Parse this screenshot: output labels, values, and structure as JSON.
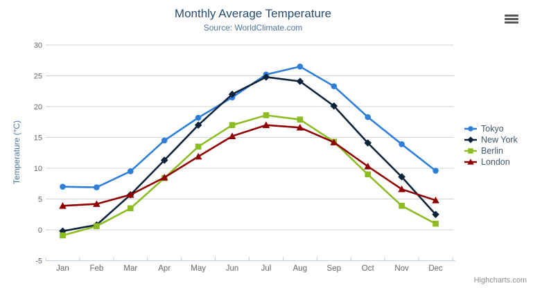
{
  "chart_data": {
    "type": "line",
    "title": "Monthly Average Temperature",
    "subtitle": "Source: WorldClimate.com",
    "categories": [
      "Jan",
      "Feb",
      "Mar",
      "Apr",
      "May",
      "Jun",
      "Jul",
      "Aug",
      "Sep",
      "Oct",
      "Nov",
      "Dec"
    ],
    "series": [
      {
        "name": "Tokyo",
        "color": "#2f7ed8",
        "marker": "circle",
        "values": [
          7.0,
          6.9,
          9.5,
          14.5,
          18.2,
          21.5,
          25.2,
          26.5,
          23.3,
          18.3,
          13.9,
          9.6
        ]
      },
      {
        "name": "New York",
        "color": "#0d233a",
        "marker": "diamond",
        "values": [
          -0.2,
          0.8,
          5.7,
          11.3,
          17.0,
          22.0,
          24.8,
          24.1,
          20.1,
          14.1,
          8.6,
          2.5
        ]
      },
      {
        "name": "Berlin",
        "color": "#8bbc21",
        "marker": "square",
        "values": [
          -0.9,
          0.6,
          3.5,
          8.4,
          13.5,
          17.0,
          18.6,
          17.9,
          14.3,
          9.0,
          3.9,
          1.0
        ]
      },
      {
        "name": "London",
        "color": "#910000",
        "marker": "triangle",
        "values": [
          3.9,
          4.2,
          5.7,
          8.5,
          11.9,
          15.2,
          17.0,
          16.6,
          14.2,
          10.3,
          6.6,
          4.8
        ]
      }
    ],
    "xlabel": "",
    "ylabel": "Temperature (°C)",
    "ylim": [
      -5,
      30
    ],
    "ytick": 5,
    "grid": true,
    "legend_position": "right",
    "colors": {
      "title": "#274b6d",
      "subtitle": "#4d759e",
      "axis_label": "#666666",
      "gridline": "#d2d2d2",
      "axis_line": "#c0d0e0",
      "legend_text": "#3e576f"
    }
  },
  "menu": {
    "icon": "hamburger-menu"
  },
  "credits": {
    "label": "Highcharts.com"
  }
}
